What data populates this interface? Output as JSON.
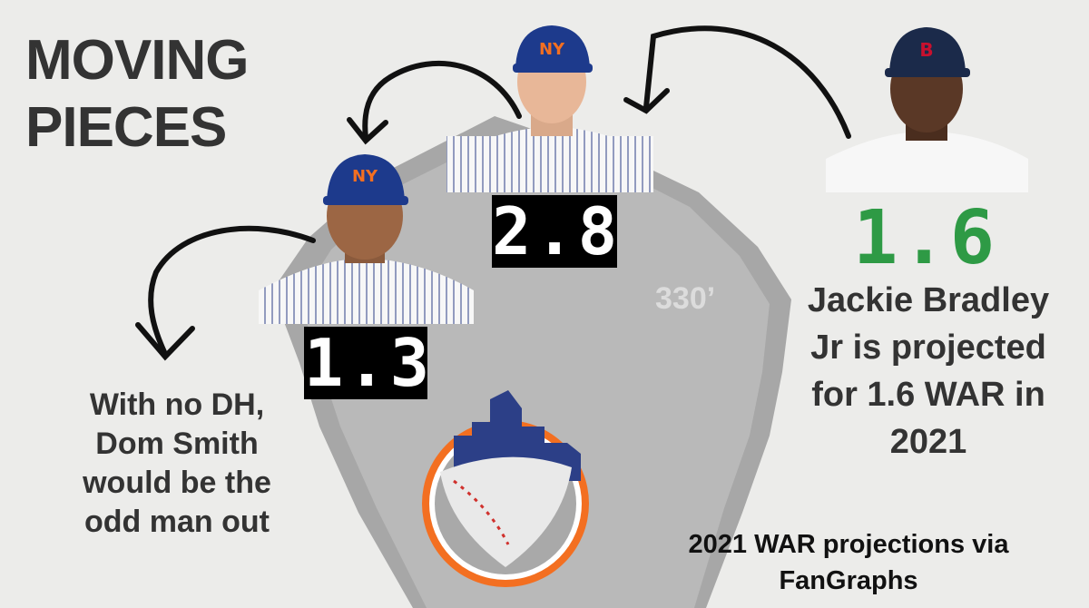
{
  "title": "MOVING PIECES",
  "players": [
    {
      "war": 2.8
    },
    {
      "war": 1.3
    },
    {
      "war": 1.6
    }
  ],
  "distance_marker": "330’",
  "right_note": "Jackie Bradley Jr is projected for 1.6 WAR in 2021",
  "left_note": "With no DH, Dom Smith would be the odd man out",
  "credit": "2021 WAR projections via FanGraphs"
}
